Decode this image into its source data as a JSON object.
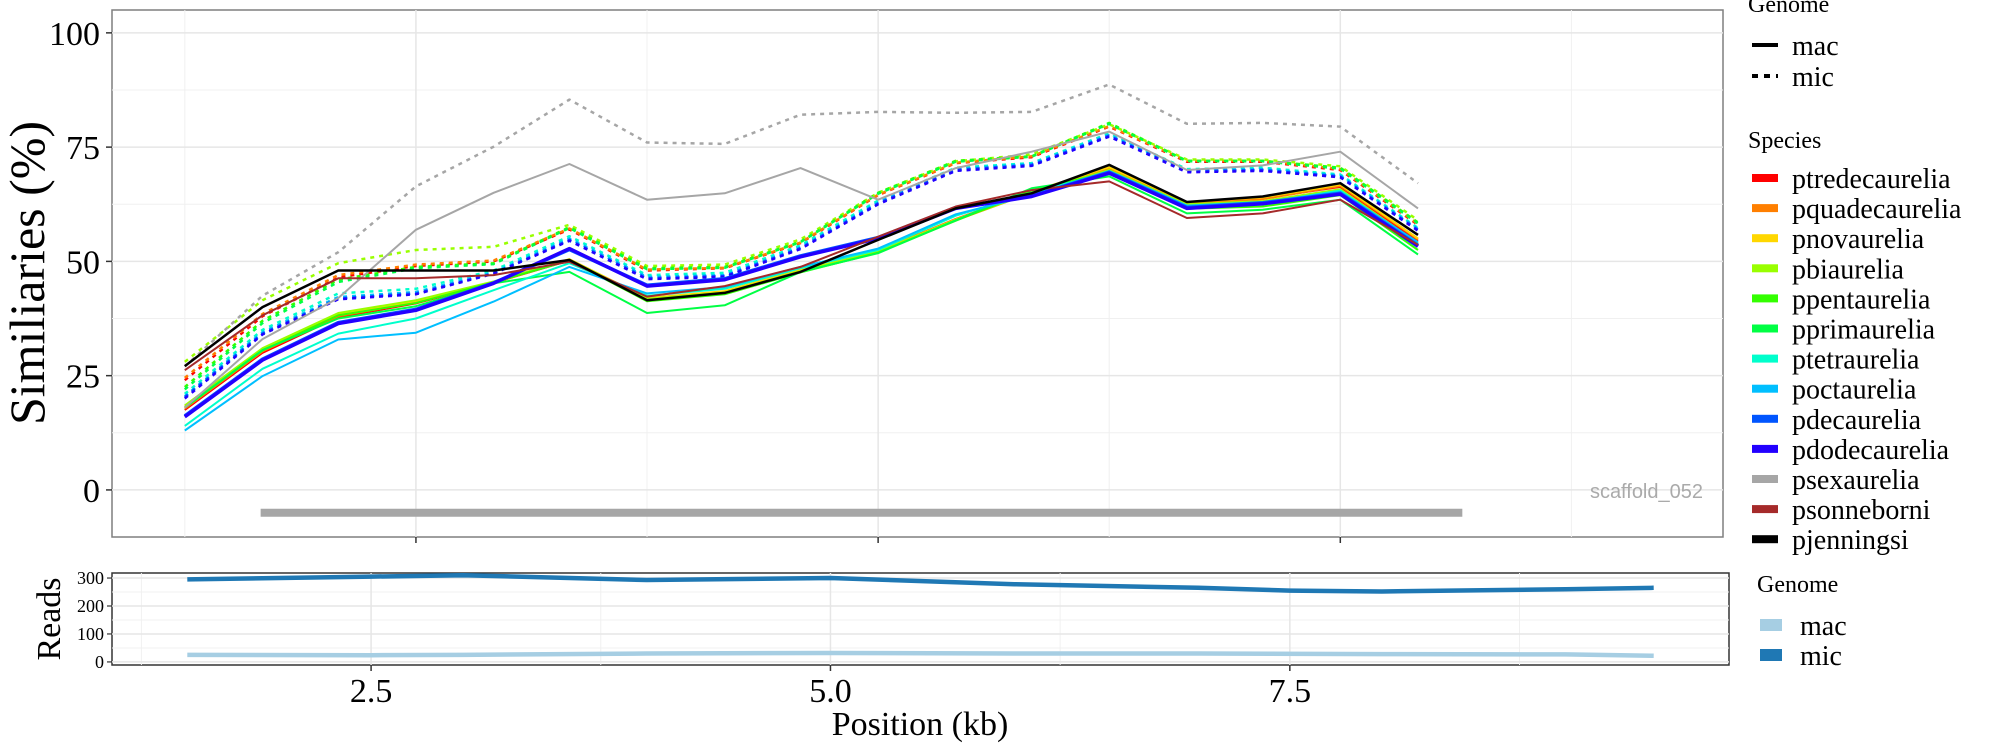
{
  "chart_data": [
    {
      "type": "line",
      "title": "",
      "xlabel": "",
      "ylabel": "Similiaries (%)",
      "xlim": [
        0.856,
        9.57
      ],
      "ylim": [
        -10.3,
        105
      ],
      "xticks": [
        2.5,
        5.0,
        7.5
      ],
      "yticks": [
        0,
        25,
        50,
        75,
        100
      ],
      "ytick_labels": [
        "0",
        "25",
        "50",
        "75",
        "100"
      ],
      "grid": true,
      "annotation": "scaffold_052",
      "scaffold_bar": {
        "x": [
          1.66,
          8.16
        ],
        "y": -5,
        "color": "#A6A6A6"
      },
      "x": [
        1.25,
        1.67,
        2.08,
        2.5,
        2.92,
        3.33,
        3.75,
        4.17,
        4.58,
        5.0,
        5.42,
        5.83,
        6.25,
        6.67,
        7.08,
        7.5,
        7.92
      ],
      "legend_genome": {
        "title": "Genome",
        "entries": [
          {
            "label": "mac",
            "style": "solid"
          },
          {
            "label": "mic",
            "style": "dashed"
          }
        ],
        "placement": "right"
      },
      "legend_species": {
        "title": "Species",
        "placement": "right"
      },
      "species": [
        {
          "name": "ptredecaurelia",
          "color": "#FF0000",
          "mac": [
            17.5,
            30,
            37.8,
            40.8,
            45.3,
            50.2,
            41.6,
            43.2,
            47.8,
            52.3,
            59.3,
            65.2,
            70.4,
            62.9,
            63.8,
            66.3,
            54.5
          ],
          "mic": [
            24,
            38,
            46.5,
            49,
            50,
            57,
            48,
            48.5,
            54,
            64.5,
            71.5,
            72.8,
            79.5,
            71.8,
            71.8,
            70,
            58
          ]
        },
        {
          "name": "pquadecaurelia",
          "color": "#FF7F00",
          "mac": [
            17.8,
            30.3,
            38,
            41,
            45.3,
            50.3,
            41.8,
            43.3,
            48,
            52,
            59,
            65,
            70.3,
            62.8,
            63.6,
            66.5,
            54.8
          ],
          "mic": [
            24.5,
            38.5,
            47,
            49.3,
            50.2,
            57.2,
            48.2,
            48.6,
            54.1,
            64.6,
            71.6,
            73,
            79.6,
            72,
            72,
            70.2,
            58.2
          ]
        },
        {
          "name": "pnovaurelia",
          "color": "#FFD700",
          "mac": [
            18.2,
            30.8,
            38.5,
            41.3,
            45.5,
            50.5,
            42,
            43.5,
            48.2,
            52.2,
            59.2,
            65.3,
            70.6,
            63,
            64,
            66.8,
            55
          ]
        },
        {
          "name": "pbiaurelia",
          "color": "#99FF00",
          "mac": [
            18.5,
            31,
            38.7,
            41.5,
            45.6,
            50.4,
            41.8,
            43.2,
            47.9,
            52.1,
            59.1,
            65,
            70,
            62.5,
            63.2,
            65.8,
            54
          ],
          "mic": [
            28,
            41.5,
            49.6,
            52.5,
            53.2,
            58,
            49,
            49.3,
            54.8,
            65,
            71.9,
            73.4,
            80,
            72.3,
            72.3,
            70.8,
            59
          ]
        },
        {
          "name": "ppentaurelia",
          "color": "#33FF00",
          "mac": [
            18,
            30.5,
            38.2,
            40.9,
            45.4,
            50.2,
            41.3,
            42.8,
            47.6,
            51.9,
            58.9,
            65.5,
            69.5,
            61.5,
            62,
            64.5,
            52.5
          ],
          "mic": [
            22.5,
            37,
            46,
            48.8,
            49.6,
            57.5,
            48.5,
            48.8,
            54.3,
            65,
            72,
            73,
            80.3,
            72,
            72,
            70.5,
            58.5
          ]
        },
        {
          "name": "pprimaurelia",
          "color": "#00FF44",
          "mac": [
            18,
            30.6,
            37.5,
            40.2,
            45.2,
            47.7,
            38.7,
            40.4,
            47.7,
            51.8,
            59,
            66,
            68.6,
            60.5,
            61.3,
            63.5,
            51.5
          ],
          "mic": [
            22,
            36.5,
            45.5,
            48.5,
            49.4,
            57.3,
            48.3,
            48.6,
            54.2,
            64.8,
            71.8,
            72.9,
            80.1,
            71.9,
            71.9,
            70.3,
            58.3
          ]
        },
        {
          "name": "ptetraurelia",
          "color": "#00FFCC",
          "mac": [
            14,
            26.5,
            34.2,
            37.5,
            43.7,
            49.6,
            42.5,
            44,
            48.5,
            52.5,
            60,
            65,
            69.5,
            62,
            62.8,
            65.5,
            53.8
          ],
          "mic": [
            21,
            35,
            43,
            44,
            48,
            55.5,
            47,
            47.5,
            53.5,
            63.3,
            70.5,
            71.5,
            78,
            70.2,
            70.5,
            69,
            57.3
          ]
        },
        {
          "name": "poctaurelia",
          "color": "#00BFFF",
          "mac": [
            13,
            24.9,
            32.9,
            34.4,
            41.2,
            48.8,
            43,
            44.4,
            48.8,
            52.8,
            60.3,
            64.5,
            69.8,
            62.2,
            63,
            65.2,
            54.2
          ],
          "mic": [
            20.5,
            34.5,
            42.2,
            43.3,
            47.6,
            55,
            46.6,
            47,
            53.1,
            62.9,
            70.2,
            71.3,
            77.7,
            69.9,
            70.2,
            68.8,
            57.1
          ]
        },
        {
          "name": "pdecaurelia",
          "color": "#0055FF",
          "mac": [
            16.2,
            28.6,
            36.6,
            39.5,
            45.3,
            52.6,
            44.8,
            46.2,
            51.2,
            55.2,
            61.8,
            64.3,
            69.5,
            61.8,
            62.8,
            64.9,
            53.5
          ],
          "mic": [
            20.3,
            34.2,
            41.9,
            43,
            47.4,
            54.7,
            46.3,
            46.8,
            52.9,
            62.7,
            70,
            71.1,
            77.5,
            69.7,
            70,
            68.6,
            56.9
          ]
        },
        {
          "name": "pdodecaurelia",
          "color": "#2200FF",
          "mac": [
            16,
            28.4,
            36.4,
            39.3,
            45.2,
            52.8,
            44.6,
            46,
            51,
            55,
            61.6,
            64.2,
            69.3,
            61.6,
            62.6,
            64.7,
            53.3
          ],
          "mic": [
            20,
            34,
            41.7,
            42.8,
            47.3,
            54.5,
            46.1,
            46.6,
            52.7,
            62.5,
            69.8,
            70.9,
            77.3,
            69.5,
            69.8,
            68.4,
            56.7
          ]
        },
        {
          "name": "psexaurelia",
          "color": "#A6A6A6",
          "mac": [
            18,
            33,
            42,
            56.9,
            65,
            71.3,
            63.5,
            64.9,
            70.4,
            63.5,
            70.4,
            74,
            78.4,
            70,
            71,
            74,
            61.6
          ],
          "mic": [
            27,
            42.5,
            52,
            66.4,
            75.1,
            85.4,
            76,
            75.7,
            82.1,
            82.7,
            82.5,
            82.7,
            88.7,
            80.1,
            80.3,
            79.5,
            67.1
          ]
        },
        {
          "name": "psonneborni",
          "color": "#A52A2A",
          "mac": [
            26.2,
            38.2,
            46.3,
            46.3,
            47,
            49.9,
            42.3,
            44.6,
            48.8,
            55.4,
            62,
            65.6,
            67.5,
            59.5,
            60.5,
            63.5,
            53.6
          ]
        },
        {
          "name": "pjenningsi",
          "color": "#000000",
          "mac": [
            27.1,
            40,
            48,
            48,
            48,
            50.3,
            41.5,
            43.1,
            47.7,
            54.7,
            61.6,
            64.9,
            71.1,
            63,
            64.2,
            67.1,
            55.8
          ]
        }
      ]
    },
    {
      "type": "line",
      "xlabel": "Position (kb)",
      "ylabel": "Reads",
      "xlim": [
        1.09,
        9.89
      ],
      "ylim": [
        -11,
        318
      ],
      "xticks": [
        2.5,
        5.0,
        7.5
      ],
      "xtick_labels": [
        "2.5",
        "5.0",
        "7.5"
      ],
      "yticks": [
        0,
        100,
        200,
        300
      ],
      "ytick_labels": [
        "0",
        "100",
        "200",
        "300"
      ],
      "grid": true,
      "legend": {
        "title": "Genome",
        "placement": "right"
      },
      "series": [
        {
          "name": "mac",
          "color": "#A6CEE3",
          "x": [
            1.5,
            2.5,
            3.0,
            4.0,
            5.0,
            6.0,
            7.0,
            8.0,
            9.0,
            9.48
          ],
          "y": [
            25,
            24,
            25,
            30,
            32,
            30,
            30,
            28,
            27,
            22
          ]
        },
        {
          "name": "mic",
          "color": "#1F78B4",
          "x": [
            1.5,
            2.5,
            3.0,
            4.0,
            5.0,
            6.0,
            7.0,
            7.5,
            8.0,
            9.0,
            9.48
          ],
          "y": [
            295,
            305,
            310,
            293,
            300,
            278,
            265,
            255,
            252,
            260,
            265
          ]
        }
      ]
    }
  ]
}
